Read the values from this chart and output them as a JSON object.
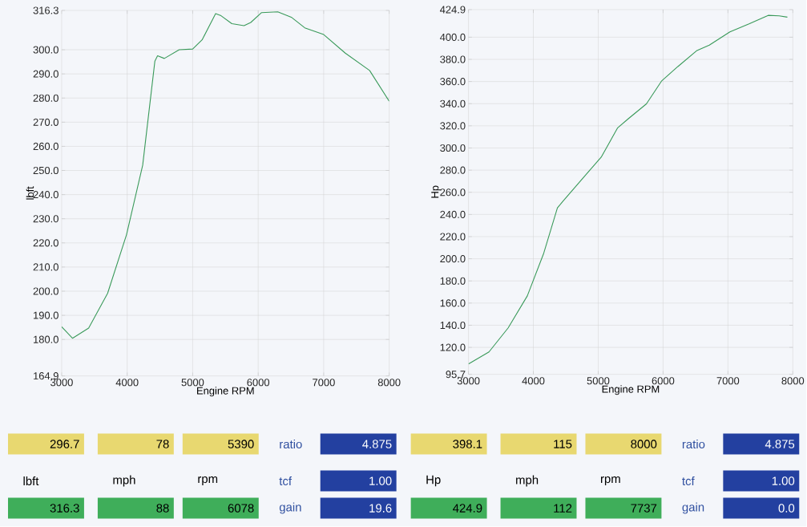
{
  "chart_data": [
    {
      "type": "line",
      "xlabel": "Engine RPM",
      "ylabel": "lbft",
      "xlim": [
        3000,
        8000
      ],
      "ylim": [
        164.9,
        316.3
      ],
      "xticks": [
        3000,
        4000,
        5000,
        6000,
        7000,
        8000
      ],
      "yticks": [
        {
          "value": 164.9,
          "label": "164.9"
        },
        {
          "value": 180,
          "label": "180.0"
        },
        {
          "value": 190,
          "label": "190.0"
        },
        {
          "value": 200,
          "label": "200.0"
        },
        {
          "value": 210,
          "label": "210.0"
        },
        {
          "value": 220,
          "label": "220.0"
        },
        {
          "value": 230,
          "label": "230.0"
        },
        {
          "value": 240,
          "label": "240.0"
        },
        {
          "value": 250,
          "label": "250.0"
        },
        {
          "value": 260,
          "label": "260.0"
        },
        {
          "value": 270,
          "label": "270.0"
        },
        {
          "value": 280,
          "label": "280.0"
        },
        {
          "value": 290,
          "label": "290.0"
        },
        {
          "value": 300,
          "label": "300.0"
        },
        {
          "value": 316.3,
          "label": "316.3"
        }
      ],
      "grid": true,
      "x": [
        3000,
        3165,
        3412,
        3701,
        3990,
        4237,
        4423,
        4464,
        4567,
        4794,
        5000,
        5144,
        5350,
        5433,
        5598,
        5784,
        5887,
        6052,
        6299,
        6505,
        6711,
        7000,
        7330,
        7701,
        8000
      ],
      "series": [
        {
          "color": "#3a9a5a",
          "values": [
            185.3,
            180.5,
            184.7,
            199.1,
            223.4,
            252.2,
            295.3,
            297.5,
            296.4,
            300.0,
            300.3,
            304.1,
            315.0,
            314.1,
            310.8,
            310.0,
            311.3,
            315.4,
            315.7,
            313.5,
            309.1,
            306.3,
            298.6,
            291.4,
            278.7
          ]
        }
      ],
      "annotations": [
        "296.7",
        "78",
        "5390",
        "ratio",
        "4.875",
        "lbft",
        "mph",
        "rpm",
        "tcf",
        "1.00",
        "316.3",
        "88",
        "6078",
        "gain",
        "19.6"
      ]
    },
    {
      "type": "line",
      "xlabel": "Engine RPM",
      "ylabel": "Hp",
      "xlim": [
        3000,
        8000
      ],
      "ylim": [
        95.7,
        424.9
      ],
      "xticks": [
        3000,
        4000,
        5000,
        6000,
        7000,
        8000
      ],
      "yticks": [
        {
          "value": 95.7,
          "label": "95.7"
        },
        {
          "value": 120,
          "label": "120.0"
        },
        {
          "value": 140,
          "label": "140.0"
        },
        {
          "value": 160,
          "label": "160.0"
        },
        {
          "value": 180,
          "label": "180.0"
        },
        {
          "value": 200,
          "label": "200.0"
        },
        {
          "value": 220,
          "label": "220.0"
        },
        {
          "value": 240,
          "label": "240.0"
        },
        {
          "value": 260,
          "label": "260.0"
        },
        {
          "value": 280,
          "label": "280.0"
        },
        {
          "value": 300,
          "label": "300.0"
        },
        {
          "value": 320,
          "label": "320.0"
        },
        {
          "value": 340,
          "label": "340.0"
        },
        {
          "value": 360,
          "label": "360.0"
        },
        {
          "value": 380,
          "label": "380.0"
        },
        {
          "value": 400,
          "label": "400.0"
        },
        {
          "value": 424.9,
          "label": "424.9"
        }
      ],
      "grid": true,
      "x": [
        3000,
        3316,
        3612,
        3907,
        4160,
        4371,
        4456,
        4793,
        5046,
        5300,
        5468,
        5743,
        5975,
        6228,
        6523,
        6713,
        7030,
        7325,
        7620,
        7789,
        7916
      ],
      "series": [
        {
          "color": "#3a9a5a",
          "values": [
            105.1,
            115.9,
            137.6,
            166.5,
            205.0,
            245.9,
            251.9,
            274.8,
            291.7,
            318.2,
            326.6,
            339.8,
            360.3,
            373.5,
            388.0,
            392.8,
            404.8,
            412.0,
            419.7,
            419.3,
            418.1
          ]
        }
      ],
      "annotations": [
        "398.1",
        "115",
        "8000",
        "ratio",
        "4.875",
        "Hp",
        "mph",
        "rpm",
        "tcf",
        "1.00",
        "424.9",
        "112",
        "7737",
        "gain",
        "0.0"
      ]
    }
  ]
}
